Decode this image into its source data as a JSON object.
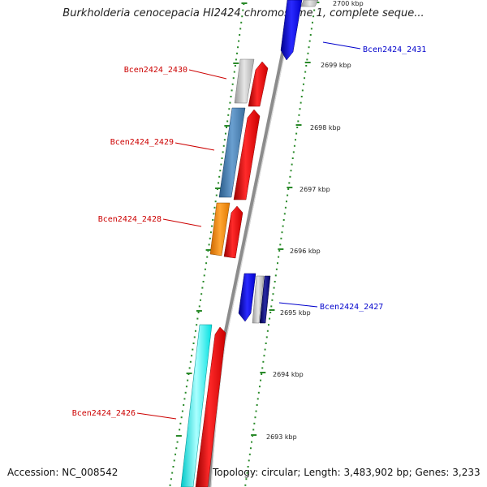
{
  "title": "Burkholderia cenocepacia HI2424 chromosome 1, complete seque...",
  "footer": {
    "accession": "Accession: NC_008542",
    "summary": "Topology: circular; Length: 3,483,902 bp; Genes: 3,233"
  },
  "ruler_ticks": [
    "2700 kbp",
    "2699 kbp",
    "2698 kbp",
    "2697 kbp",
    "2696 kbp",
    "2695 kbp",
    "2694 kbp",
    "2693 kbp"
  ],
  "gene_labels": [
    {
      "id": "Bcen2424_2431",
      "color": "#0000cc"
    },
    {
      "id": "Bcen2424_2430",
      "color": "#cc0000"
    },
    {
      "id": "Bcen2424_2429",
      "color": "#cc0000"
    },
    {
      "id": "Bcen2424_2428",
      "color": "#cc0000"
    },
    {
      "id": "Bcen2424_2427",
      "color": "#0000cc"
    },
    {
      "id": "Bcen2424_2426",
      "color": "#cc0000"
    }
  ],
  "colors": {
    "backbone": "#8c8c8c",
    "ruler": "#2a8a2a",
    "cds_red": "#ff0000",
    "cds_blue": "#0000ff",
    "cds_grey": "#bdbdbd",
    "cds_steel": "#4682b4",
    "cds_orange": "#ff8c00",
    "cds_cyan": "#00ffff",
    "cds_navy": "#00008b"
  }
}
